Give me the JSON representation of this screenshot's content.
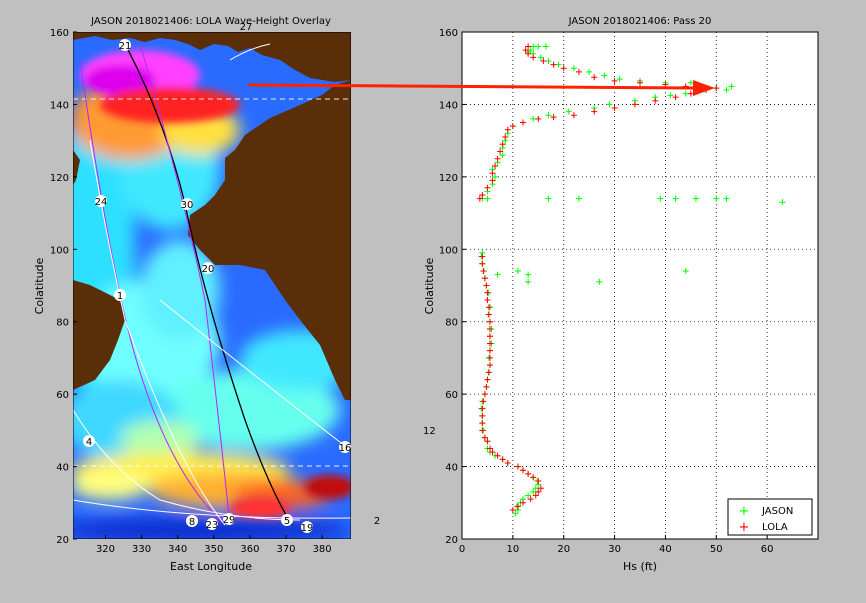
{
  "colors": {
    "background": "#c0c0c0",
    "land": "#5a2e08",
    "jason": "#00ff00",
    "lola": "#ff0000",
    "arrow": "#ff2200"
  },
  "chart_data": [
    {
      "type": "heatmap",
      "title": "JASON 2018021406: LOLA Wave-Height Overlay",
      "xlabel": "East Longitude",
      "ylabel": "Colatitude",
      "xlim": [
        311,
        388
      ],
      "ylim": [
        20,
        160
      ],
      "xticks": [
        320,
        330,
        340,
        350,
        360,
        370,
        380
      ],
      "yticks": [
        20,
        40,
        60,
        80,
        100,
        120,
        140,
        160
      ],
      "pass_labels": [
        "21",
        "27",
        "24",
        "30",
        "20",
        "1",
        "4",
        "16",
        "8",
        "23",
        "29",
        "5",
        "19",
        "2"
      ]
    },
    {
      "type": "scatter",
      "title": "JASON 2018021406: Pass 20",
      "xlabel": "Hs (ft)",
      "ylabel": "Colatitude",
      "xlim": [
        0,
        70
      ],
      "ylim": [
        20,
        160
      ],
      "xticks": [
        0,
        10,
        20,
        30,
        40,
        50,
        60
      ],
      "yticks": [
        20,
        40,
        60,
        80,
        100,
        120,
        140,
        160
      ],
      "grid": true,
      "legend_position": "bottom-right",
      "stray_label": "12",
      "series": [
        {
          "name": "JASON",
          "points": [
            [
              10.5,
              27
            ],
            [
              11,
              28
            ],
            [
              10.8,
              29
            ],
            [
              11.5,
              30
            ],
            [
              12,
              31
            ],
            [
              13,
              32
            ],
            [
              14,
              33
            ],
            [
              14.5,
              34
            ],
            [
              15,
              35
            ],
            [
              14.8,
              36
            ],
            [
              14,
              37
            ],
            [
              13,
              38
            ],
            [
              12,
              39
            ],
            [
              11,
              40
            ],
            [
              9,
              41
            ],
            [
              8,
              42
            ],
            [
              6.5,
              43
            ],
            [
              5.5,
              44
            ],
            [
              5,
              45
            ],
            [
              5,
              47
            ],
            [
              4.5,
              48
            ],
            [
              4.2,
              50
            ],
            [
              4,
              52
            ],
            [
              4,
              54
            ],
            [
              3.8,
              56
            ],
            [
              4,
              58
            ],
            [
              4.5,
              60
            ],
            [
              4.8,
              62
            ],
            [
              5,
              64
            ],
            [
              5.2,
              66
            ],
            [
              5.5,
              68
            ],
            [
              5.3,
              70
            ],
            [
              5.5,
              72
            ],
            [
              5.8,
              74
            ],
            [
              5.5,
              76
            ],
            [
              5.8,
              78
            ],
            [
              5.5,
              80
            ],
            [
              5.2,
              82
            ],
            [
              5.5,
              84
            ],
            [
              5,
              86
            ],
            [
              5.2,
              88
            ],
            [
              4.8,
              90
            ],
            [
              4.5,
              92
            ],
            [
              4.3,
              94
            ],
            [
              4,
              96
            ],
            [
              3.8,
              98
            ],
            [
              4,
              99
            ],
            [
              7,
              93
            ],
            [
              11,
              94
            ],
            [
              13,
              93
            ],
            [
              13,
              91
            ],
            [
              27,
              91
            ],
            [
              44,
              94
            ],
            [
              5,
              114
            ],
            [
              17,
              114
            ],
            [
              23,
              114
            ],
            [
              39,
              114
            ],
            [
              42,
              114
            ],
            [
              46,
              114
            ],
            [
              50,
              114
            ],
            [
              52,
              114
            ],
            [
              63,
              113
            ],
            [
              4,
              114
            ],
            [
              5,
              116
            ],
            [
              6,
              118
            ],
            [
              6.5,
              120
            ],
            [
              6,
              122
            ],
            [
              7,
              124
            ],
            [
              8,
              126
            ],
            [
              8,
              128
            ],
            [
              8.5,
              130
            ],
            [
              9,
              132
            ],
            [
              10,
              134
            ],
            [
              12,
              135
            ],
            [
              14,
              136
            ],
            [
              17,
              137
            ],
            [
              21,
              138
            ],
            [
              26,
              139
            ],
            [
              29,
              140
            ],
            [
              34,
              141
            ],
            [
              38,
              142
            ],
            [
              41,
              142.5
            ],
            [
              44,
              143
            ],
            [
              47,
              144
            ],
            [
              50,
              144.5
            ],
            [
              52,
              144
            ],
            [
              53,
              145
            ],
            [
              45,
              146
            ],
            [
              40,
              146
            ],
            [
              35,
              146.5
            ],
            [
              31,
              147
            ],
            [
              28,
              148
            ],
            [
              25,
              149
            ],
            [
              22,
              150
            ],
            [
              19,
              151
            ],
            [
              17,
              152
            ],
            [
              15.5,
              153
            ],
            [
              14,
              154
            ],
            [
              13.5,
              155
            ],
            [
              14,
              156
            ],
            [
              15,
              156
            ],
            [
              16.5,
              156
            ],
            [
              13,
              154.5
            ]
          ]
        },
        {
          "name": "LOLA",
          "points": [
            [
              10,
              28
            ],
            [
              11,
              29
            ],
            [
              12,
              30
            ],
            [
              13.5,
              31
            ],
            [
              14.5,
              32
            ],
            [
              15,
              33
            ],
            [
              15.5,
              34
            ],
            [
              15,
              36
            ],
            [
              14,
              37
            ],
            [
              13,
              38
            ],
            [
              12,
              39
            ],
            [
              11,
              40
            ],
            [
              9,
              41
            ],
            [
              8,
              42
            ],
            [
              7,
              43
            ],
            [
              6,
              44
            ],
            [
              5.5,
              45
            ],
            [
              5,
              47
            ],
            [
              4.5,
              48
            ],
            [
              4,
              50
            ],
            [
              4,
              52
            ],
            [
              4,
              54
            ],
            [
              4,
              56
            ],
            [
              4.2,
              58
            ],
            [
              4.5,
              60
            ],
            [
              4.8,
              62
            ],
            [
              5,
              64
            ],
            [
              5.3,
              66
            ],
            [
              5.5,
              68
            ],
            [
              5.5,
              70
            ],
            [
              5.5,
              72
            ],
            [
              5.5,
              74
            ],
            [
              5.5,
              76
            ],
            [
              5.5,
              78
            ],
            [
              5.5,
              80
            ],
            [
              5.3,
              82
            ],
            [
              5.3,
              84
            ],
            [
              5,
              86
            ],
            [
              5,
              88
            ],
            [
              4.8,
              90
            ],
            [
              4.5,
              92
            ],
            [
              4.2,
              94
            ],
            [
              4,
              96
            ],
            [
              4,
              98
            ],
            [
              3.5,
              114
            ],
            [
              4,
              115
            ],
            [
              5,
              117
            ],
            [
              6,
              119
            ],
            [
              6,
              121
            ],
            [
              6.5,
              123
            ],
            [
              7,
              125
            ],
            [
              7.5,
              127
            ],
            [
              8,
              129
            ],
            [
              8.5,
              131
            ],
            [
              9,
              133
            ],
            [
              10,
              134
            ],
            [
              12,
              135
            ],
            [
              15,
              136
            ],
            [
              18,
              136.5
            ],
            [
              22,
              137
            ],
            [
              26,
              138
            ],
            [
              30,
              139
            ],
            [
              34,
              140
            ],
            [
              38,
              141
            ],
            [
              42,
              142
            ],
            [
              45,
              143
            ],
            [
              48,
              144
            ],
            [
              50,
              144.5
            ],
            [
              44,
              145
            ],
            [
              40,
              145.5
            ],
            [
              35,
              146
            ],
            [
              30,
              146.5
            ],
            [
              26,
              147.5
            ],
            [
              23,
              149
            ],
            [
              20,
              150
            ],
            [
              18,
              151
            ],
            [
              16,
              152
            ],
            [
              14,
              153
            ],
            [
              13,
              154
            ],
            [
              12.5,
              155
            ],
            [
              13,
              156
            ]
          ]
        }
      ]
    }
  ]
}
